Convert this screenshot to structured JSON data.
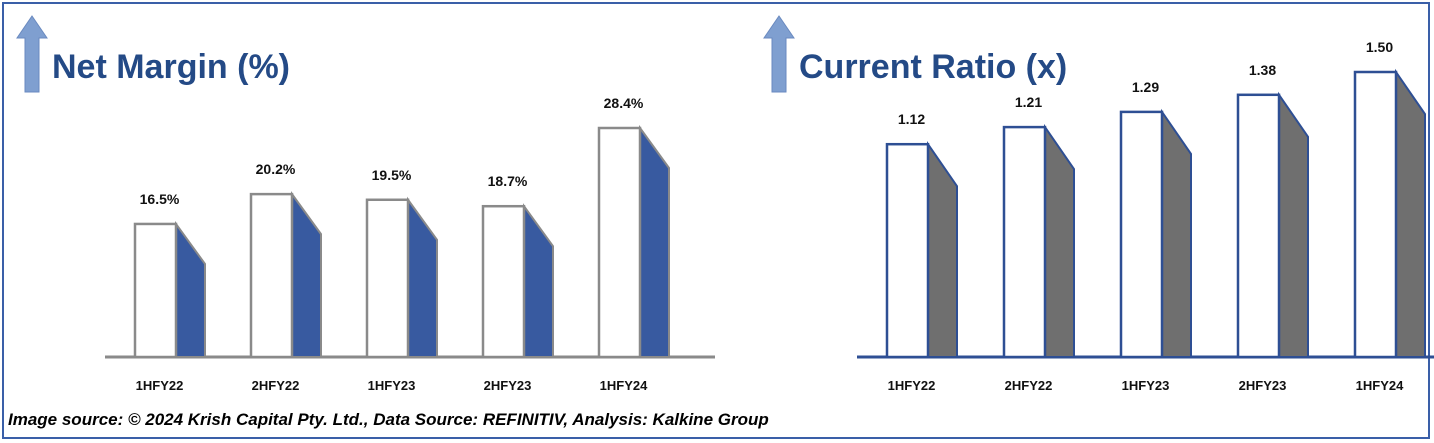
{
  "chart_data": [
    {
      "type": "bar",
      "title": "Net Margin (%)",
      "categories": [
        "1HFY22",
        "2HFY22",
        "1HFY23",
        "2HFY23",
        "1HFY24"
      ],
      "values": [
        16.5,
        20.2,
        19.5,
        18.7,
        28.4
      ],
      "data_labels": [
        "16.5%",
        "20.2%",
        "19.5%",
        "18.7%",
        "28.4%"
      ],
      "ylim": [
        0,
        30
      ],
      "grid": false,
      "colors": {
        "face": "#ffffff",
        "face_border": "#8a8a8a",
        "side": "#385aa0",
        "baseline": "#8a8a8a",
        "title": "#244a86",
        "arrow": "#7f9fd0"
      }
    },
    {
      "type": "bar",
      "title": "Current Ratio (x)",
      "categories": [
        "1HFY22",
        "2HFY22",
        "1HFY23",
        "2HFY23",
        "1HFY24"
      ],
      "values": [
        1.12,
        1.21,
        1.29,
        1.38,
        1.5
      ],
      "data_labels": [
        "1.12",
        "1.21",
        "1.29",
        "1.38",
        "1.50"
      ],
      "ylim": [
        0,
        1.7
      ],
      "grid": false,
      "colors": {
        "face": "#ffffff",
        "face_border": "#2e4f94",
        "side": "#6f6f6f",
        "baseline": "#2e4f94",
        "title": "#244a86",
        "arrow": "#7f9fd0"
      }
    }
  ],
  "footer": {
    "source": "Image source: © 2024 Krish Capital Pty. Ltd., Data Source: REFINITIV, Analysis: Kalkine Group"
  }
}
